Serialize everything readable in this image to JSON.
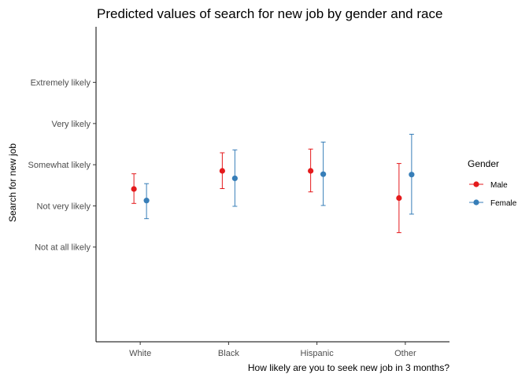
{
  "chart_data": {
    "type": "scatter",
    "title": "Predicted values of search for new job by gender and race",
    "xlabel": "How likely are you to seek new job in 3 months?",
    "ylabel": "Search for new job",
    "categories": [
      "White",
      "Black",
      "Hispanic",
      "Other"
    ],
    "y_ticks": [
      {
        "value": 1,
        "label": "Not at all likely"
      },
      {
        "value": 2,
        "label": "Not very likely"
      },
      {
        "value": 3,
        "label": "Somewhat likely"
      },
      {
        "value": 4,
        "label": "Very likely"
      },
      {
        "value": 5,
        "label": "Extremely likely"
      }
    ],
    "ylim": [
      -1.3,
      6.35
    ],
    "legend": {
      "title": "Gender",
      "position": "right"
    },
    "series": [
      {
        "name": "Male",
        "color": "#e41a1c",
        "values": [
          2.41,
          2.85,
          2.85,
          2.19
        ],
        "ci_low": [
          2.06,
          2.42,
          2.34,
          1.35
        ],
        "ci_high": [
          2.78,
          3.29,
          3.38,
          3.03
        ]
      },
      {
        "name": "Female",
        "color": "#377eb8",
        "values": [
          2.13,
          2.67,
          2.77,
          2.76
        ],
        "ci_low": [
          1.69,
          1.99,
          2.01,
          1.8
        ],
        "ci_high": [
          2.54,
          3.36,
          3.55,
          3.74
        ]
      }
    ]
  }
}
